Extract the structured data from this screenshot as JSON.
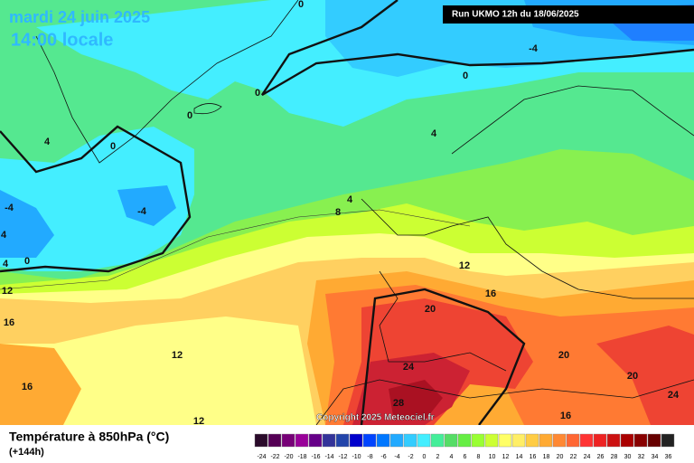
{
  "header": {
    "date": "mardi 24 juin 2025",
    "time": "14:00 locale",
    "run": "Run UKMO 12h du 18/06/2025"
  },
  "map": {
    "contour_labels": [
      0,
      0,
      0,
      0,
      4,
      -4,
      0,
      4,
      -4,
      -4,
      4,
      0,
      4,
      4,
      8,
      12,
      12,
      16,
      16,
      20,
      12,
      20,
      20,
      24,
      24,
      16,
      28,
      16,
      12
    ],
    "copyright": "Copyright 2025 Meteociel.fr"
  },
  "footer": {
    "title": "Température à 850hPa (°C)",
    "lead": "(+144h)"
  },
  "legend": {
    "ticks": [
      -24,
      -22,
      -20,
      -18,
      -16,
      -14,
      -12,
      -10,
      -8,
      -6,
      -4,
      -2,
      0,
      2,
      4,
      6,
      8,
      10,
      12,
      14,
      16,
      18,
      20,
      22,
      24,
      26,
      28,
      30,
      32,
      34,
      36
    ],
    "colors": [
      "#2a0a2a",
      "#550055",
      "#770077",
      "#990099",
      "#660088",
      "#333399",
      "#2244aa",
      "#0000cc",
      "#0044ff",
      "#0077ff",
      "#22aaff",
      "#33ccff",
      "#44eeff",
      "#44ee99",
      "#55dd66",
      "#66ee44",
      "#99ff33",
      "#ccff33",
      "#ffff66",
      "#ffee66",
      "#ffcc44",
      "#ffaa33",
      "#ff8833",
      "#ff6633",
      "#ff3333",
      "#ee2222",
      "#cc1111",
      "#aa0000",
      "#880000",
      "#660000",
      "#222222"
    ]
  }
}
